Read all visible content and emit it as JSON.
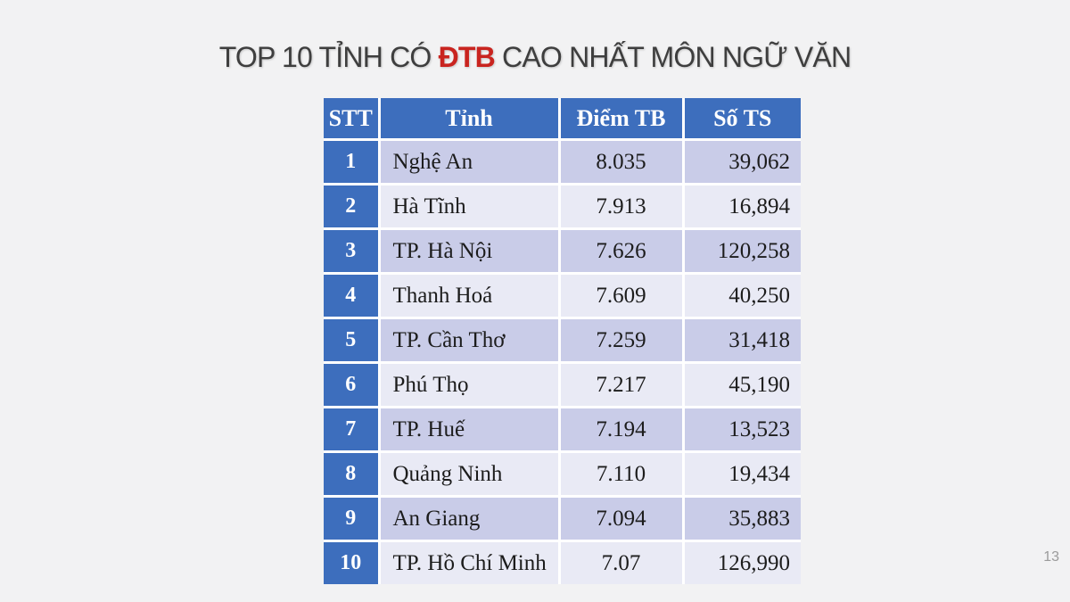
{
  "slide": {
    "title_prefix": "TOP 10 TỈNH CÓ ",
    "title_highlight": "ĐTB",
    "title_suffix": " CAO NHẤT MÔN NGỮ VĂN",
    "page_number": "13"
  },
  "colors": {
    "header_blue": "#3D6EBD",
    "band_dark": "#C9CCE8",
    "band_light": "#E9EAF5",
    "title_text": "#3E3E3E",
    "title_highlight_red": "#C9241F",
    "background": "#F2F2F3",
    "gridline": "#FFFFFF"
  },
  "table": {
    "columns": [
      "STT",
      "Tỉnh",
      "Điểm TB",
      "Số TS"
    ],
    "rows": [
      {
        "stt": "1",
        "tinh": "Nghệ An",
        "diem_tb": "8.035",
        "so_ts": "39,062"
      },
      {
        "stt": "2",
        "tinh": "Hà Tĩnh",
        "diem_tb": "7.913",
        "so_ts": "16,894"
      },
      {
        "stt": "3",
        "tinh": "TP. Hà Nội",
        "diem_tb": "7.626",
        "so_ts": "120,258"
      },
      {
        "stt": "4",
        "tinh": "Thanh Hoá",
        "diem_tb": "7.609",
        "so_ts": "40,250"
      },
      {
        "stt": "5",
        "tinh": "TP. Cần Thơ",
        "diem_tb": "7.259",
        "so_ts": "31,418"
      },
      {
        "stt": "6",
        "tinh": "Phú Thọ",
        "diem_tb": "7.217",
        "so_ts": "45,190"
      },
      {
        "stt": "7",
        "tinh": "TP. Huế",
        "diem_tb": "7.194",
        "so_ts": "13,523"
      },
      {
        "stt": "8",
        "tinh": "Quảng Ninh",
        "diem_tb": "7.110",
        "so_ts": "19,434"
      },
      {
        "stt": "9",
        "tinh": "An Giang",
        "diem_tb": "7.094",
        "so_ts": "35,883"
      },
      {
        "stt": "10",
        "tinh": "TP. Hồ Chí Minh",
        "diem_tb": "7.07",
        "so_ts": "126,990"
      }
    ]
  },
  "chart_data": {
    "type": "table",
    "title": "TOP 10 TỈNH CÓ ĐTB CAO NHẤT MÔN NGỮ VĂN",
    "categories": [
      "Nghệ An",
      "Hà Tĩnh",
      "TP. Hà Nội",
      "Thanh Hoá",
      "TP. Cần Thơ",
      "Phú Thọ",
      "TP. Huế",
      "Quảng Ninh",
      "An Giang",
      "TP. Hồ Chí Minh"
    ],
    "series": [
      {
        "name": "Điểm TB",
        "values": [
          8.035,
          7.913,
          7.626,
          7.609,
          7.259,
          7.217,
          7.194,
          7.11,
          7.094,
          7.07
        ]
      },
      {
        "name": "Số TS",
        "values": [
          39062,
          16894,
          120258,
          40250,
          31418,
          45190,
          13523,
          19434,
          35883,
          126990
        ]
      }
    ]
  }
}
